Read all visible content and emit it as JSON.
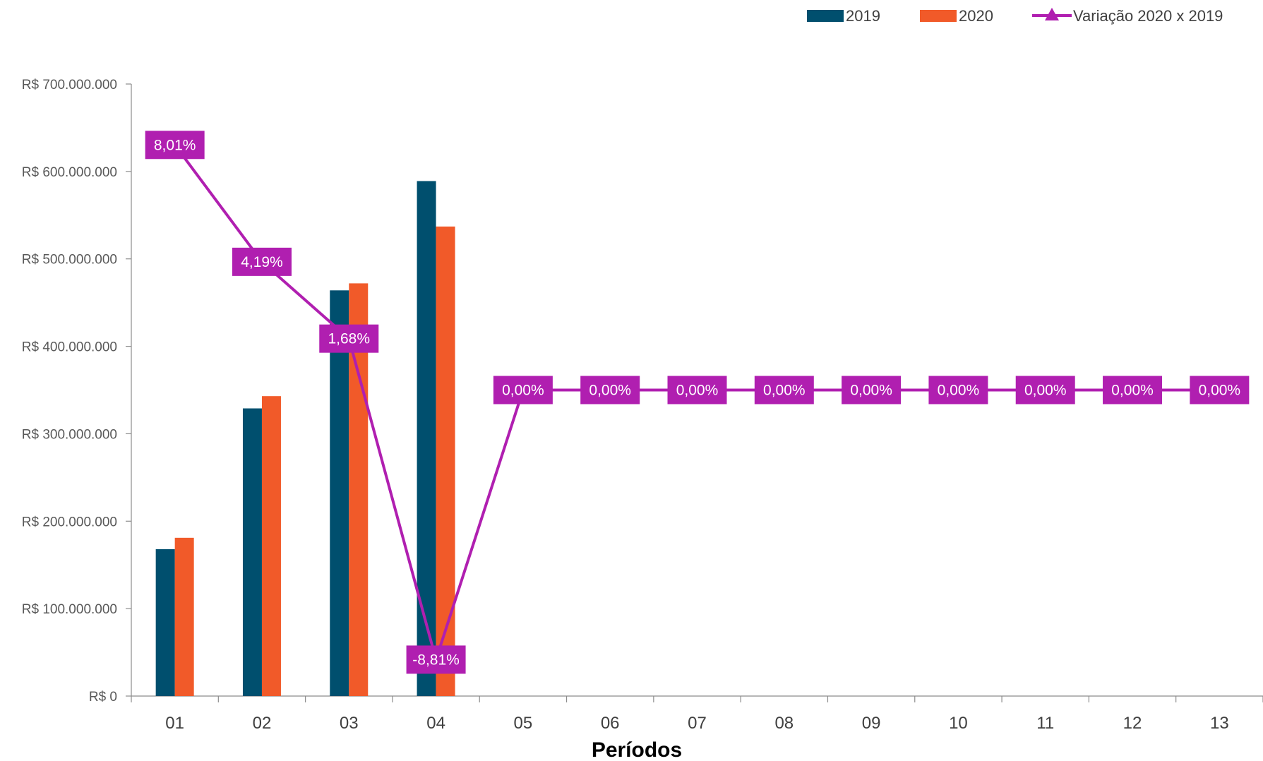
{
  "chart_data": {
    "type": "bar",
    "categories": [
      "01",
      "02",
      "03",
      "04",
      "05",
      "06",
      "07",
      "08",
      "09",
      "10",
      "11",
      "12",
      "13"
    ],
    "xlabel": "Períodos",
    "ylabel": "",
    "ylim": [
      0,
      700000000
    ],
    "yticks": [
      0,
      100000000,
      200000000,
      300000000,
      400000000,
      500000000,
      600000000,
      700000000
    ],
    "ytick_labels": [
      "R$ 0",
      "R$ 100.000.000",
      "R$ 200.000.000",
      "R$ 300.000.000",
      "R$ 400.000.000",
      "R$ 500.000.000",
      "R$ 600.000.000",
      "R$ 700.000.000"
    ],
    "series": [
      {
        "name": "2019",
        "type": "bar",
        "color": "#004F6E",
        "values": [
          168000000,
          329000000,
          464000000,
          589000000,
          null,
          null,
          null,
          null,
          null,
          null,
          null,
          null,
          null
        ]
      },
      {
        "name": "2020",
        "type": "bar",
        "color": "#F15A29",
        "values": [
          181000000,
          343000000,
          472000000,
          537000000,
          null,
          null,
          null,
          null,
          null,
          null,
          null,
          null,
          null
        ]
      },
      {
        "name": "Variação 2020 x 2019",
        "type": "line",
        "color": "#B01FB0",
        "secondary_axis": true,
        "values": [
          8.01,
          4.19,
          1.68,
          -8.81,
          0,
          0,
          0,
          0,
          0,
          0,
          0,
          0,
          0
        ],
        "labels": [
          "8,01%",
          "4,19%",
          "1,68%",
          "-8,81%",
          "0,00%",
          "0,00%",
          "0,00%",
          "0,00%",
          "0,00%",
          "0,00%",
          "0,00%",
          "0,00%",
          "0,00%"
        ]
      }
    ],
    "secondary_ylim": [
      -10,
      10
    ],
    "legend_position": "top-right",
    "grid": false
  }
}
